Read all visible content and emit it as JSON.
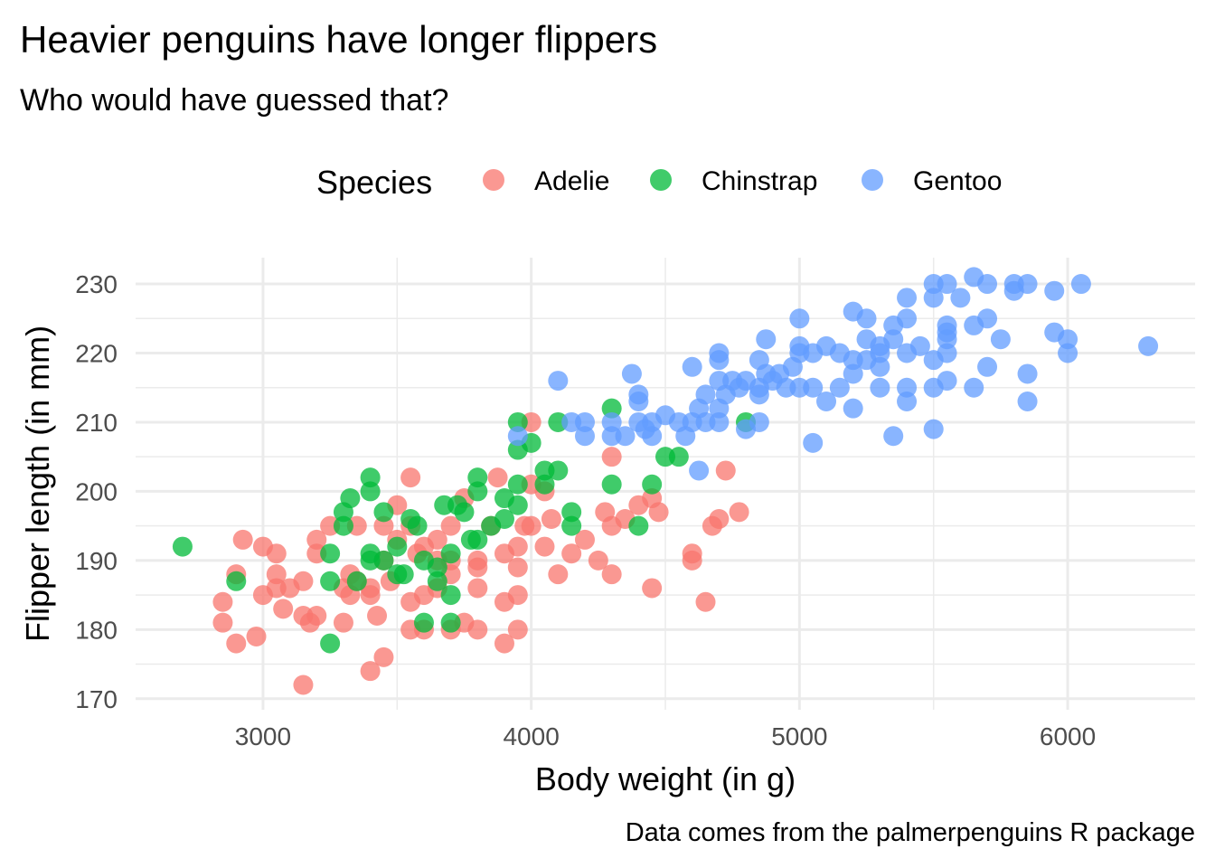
{
  "chart_data": {
    "type": "scatter",
    "title": "Heavier penguins have longer flippers",
    "subtitle": "Who would have guessed that?",
    "caption": "Data comes from the palmerpenguins R package",
    "xlabel": "Body weight (in g)",
    "ylabel": "Flipper length (in mm)",
    "xlim": [
      2525,
      6475
    ],
    "ylim": [
      168.4,
      233.8
    ],
    "xticks": [
      3000,
      4000,
      5000,
      6000
    ],
    "yticks": [
      170,
      180,
      190,
      200,
      210,
      220,
      230
    ],
    "grid": true,
    "legend": {
      "title": "Species",
      "position": "top"
    },
    "series": [
      {
        "name": "Adelie",
        "color": "#F8766D",
        "points": [
          [
            2850,
            184
          ],
          [
            2850,
            181
          ],
          [
            2900,
            178
          ],
          [
            2900,
            188
          ],
          [
            2925,
            193
          ],
          [
            2975,
            179
          ],
          [
            3000,
            192
          ],
          [
            3000,
            185
          ],
          [
            3050,
            191
          ],
          [
            3050,
            188
          ],
          [
            3050,
            186
          ],
          [
            3075,
            183
          ],
          [
            3100,
            186
          ],
          [
            3150,
            182
          ],
          [
            3150,
            187
          ],
          [
            3150,
            172
          ],
          [
            3175,
            181
          ],
          [
            3200,
            191
          ],
          [
            3200,
            193
          ],
          [
            3200,
            182
          ],
          [
            3250,
            195
          ],
          [
            3300,
            181
          ],
          [
            3300,
            186
          ],
          [
            3325,
            185
          ],
          [
            3350,
            195
          ],
          [
            3400,
            174
          ],
          [
            3400,
            186
          ],
          [
            3400,
            185
          ],
          [
            3425,
            182
          ],
          [
            3450,
            176
          ],
          [
            3450,
            190
          ],
          [
            3450,
            195
          ],
          [
            3500,
            198
          ],
          [
            3500,
            193
          ],
          [
            3550,
            202
          ],
          [
            3550,
            180
          ],
          [
            3550,
            184
          ],
          [
            3575,
            191
          ],
          [
            3600,
            180
          ],
          [
            3600,
            185
          ],
          [
            3650,
            190
          ],
          [
            3650,
            186
          ],
          [
            3700,
            180
          ],
          [
            3700,
            188
          ],
          [
            3700,
            195
          ],
          [
            3750,
            181
          ],
          [
            3750,
            199
          ],
          [
            3800,
            180
          ],
          [
            3800,
            186
          ],
          [
            3800,
            189
          ],
          [
            3800,
            190
          ],
          [
            3850,
            195
          ],
          [
            3875,
            202
          ],
          [
            3900,
            184
          ],
          [
            3900,
            178
          ],
          [
            3900,
            191
          ],
          [
            3950,
            180
          ],
          [
            3950,
            185
          ],
          [
            3950,
            189
          ],
          [
            3950,
            192
          ],
          [
            3975,
            195
          ],
          [
            4000,
            210
          ],
          [
            4000,
            201
          ],
          [
            4000,
            195
          ],
          [
            4050,
            192
          ],
          [
            4050,
            200
          ],
          [
            4075,
            196
          ],
          [
            4100,
            188
          ],
          [
            4150,
            191
          ],
          [
            4200,
            193
          ],
          [
            4250,
            190
          ],
          [
            4275,
            197
          ],
          [
            4300,
            205
          ],
          [
            4300,
            188
          ],
          [
            4300,
            195
          ],
          [
            4350,
            196
          ],
          [
            4400,
            198
          ],
          [
            4450,
            186
          ],
          [
            4450,
            199
          ],
          [
            4475,
            197
          ],
          [
            4600,
            190
          ],
          [
            4600,
            191
          ],
          [
            4650,
            184
          ],
          [
            4675,
            195
          ],
          [
            4700,
            196
          ],
          [
            4725,
            203
          ],
          [
            4775,
            197
          ],
          [
            3550,
            195
          ],
          [
            3650,
            193
          ],
          [
            3325,
            188
          ],
          [
            3475,
            187
          ],
          [
            3600,
            192
          ],
          [
            3700,
            190
          ],
          [
            3350,
            187
          ]
        ]
      },
      {
        "name": "Chinstrap",
        "color": "#00BA38",
        "points": [
          [
            2700,
            192
          ],
          [
            2900,
            187
          ],
          [
            3250,
            178
          ],
          [
            3250,
            191
          ],
          [
            3250,
            187
          ],
          [
            3300,
            195
          ],
          [
            3300,
            197
          ],
          [
            3325,
            199
          ],
          [
            3350,
            187
          ],
          [
            3400,
            202
          ],
          [
            3400,
            200
          ],
          [
            3400,
            191
          ],
          [
            3400,
            190
          ],
          [
            3450,
            197
          ],
          [
            3450,
            190
          ],
          [
            3500,
            192
          ],
          [
            3525,
            188
          ],
          [
            3550,
            196
          ],
          [
            3575,
            195
          ],
          [
            3600,
            181
          ],
          [
            3650,
            189
          ],
          [
            3650,
            187
          ],
          [
            3675,
            198
          ],
          [
            3700,
            181
          ],
          [
            3700,
            185
          ],
          [
            3700,
            191
          ],
          [
            3725,
            198
          ],
          [
            3750,
            197
          ],
          [
            3775,
            193
          ],
          [
            3800,
            202
          ],
          [
            3800,
            200
          ],
          [
            3800,
            193
          ],
          [
            3850,
            195
          ],
          [
            3900,
            199
          ],
          [
            3900,
            196
          ],
          [
            3950,
            210
          ],
          [
            3950,
            206
          ],
          [
            3950,
            201
          ],
          [
            3950,
            198
          ],
          [
            4000,
            207
          ],
          [
            4050,
            203
          ],
          [
            4050,
            201
          ],
          [
            4100,
            210
          ],
          [
            4100,
            203
          ],
          [
            4150,
            197
          ],
          [
            4150,
            195
          ],
          [
            4300,
            212
          ],
          [
            4300,
            201
          ],
          [
            4400,
            195
          ],
          [
            4450,
            201
          ],
          [
            4500,
            205
          ],
          [
            4550,
            205
          ],
          [
            4800,
            210
          ],
          [
            3600,
            190
          ],
          [
            3500,
            188
          ]
        ]
      },
      {
        "name": "Gentoo",
        "color": "#619CFF",
        "points": [
          [
            3950,
            208
          ],
          [
            4100,
            216
          ],
          [
            4150,
            210
          ],
          [
            4200,
            210
          ],
          [
            4200,
            208
          ],
          [
            4300,
            210
          ],
          [
            4300,
            208
          ],
          [
            4350,
            208
          ],
          [
            4375,
            217
          ],
          [
            4400,
            214
          ],
          [
            4400,
            213
          ],
          [
            4400,
            210
          ],
          [
            4425,
            209
          ],
          [
            4450,
            210
          ],
          [
            4450,
            208
          ],
          [
            4500,
            211
          ],
          [
            4550,
            210
          ],
          [
            4575,
            208
          ],
          [
            4600,
            218
          ],
          [
            4600,
            210
          ],
          [
            4625,
            212
          ],
          [
            4625,
            203
          ],
          [
            4650,
            214
          ],
          [
            4650,
            210
          ],
          [
            4700,
            220
          ],
          [
            4700,
            219
          ],
          [
            4700,
            216
          ],
          [
            4700,
            212
          ],
          [
            4700,
            210
          ],
          [
            4725,
            214
          ],
          [
            4750,
            216
          ],
          [
            4775,
            215
          ],
          [
            4800,
            216
          ],
          [
            4800,
            209
          ],
          [
            4850,
            219
          ],
          [
            4850,
            215
          ],
          [
            4850,
            214
          ],
          [
            4850,
            210
          ],
          [
            4875,
            222
          ],
          [
            4875,
            217
          ],
          [
            4900,
            216
          ],
          [
            4925,
            217
          ],
          [
            4950,
            215
          ],
          [
            4975,
            218
          ],
          [
            5000,
            225
          ],
          [
            5000,
            221
          ],
          [
            5000,
            220
          ],
          [
            5000,
            215
          ],
          [
            5050,
            220
          ],
          [
            5050,
            207
          ],
          [
            5050,
            215
          ],
          [
            5100,
            221
          ],
          [
            5100,
            213
          ],
          [
            5150,
            220
          ],
          [
            5150,
            215
          ],
          [
            5200,
            226
          ],
          [
            5200,
            219
          ],
          [
            5200,
            217
          ],
          [
            5200,
            212
          ],
          [
            5250,
            225
          ],
          [
            5250,
            222
          ],
          [
            5250,
            219
          ],
          [
            5300,
            221
          ],
          [
            5300,
            220
          ],
          [
            5300,
            218
          ],
          [
            5300,
            215
          ],
          [
            5350,
            224
          ],
          [
            5350,
            222
          ],
          [
            5350,
            208
          ],
          [
            5400,
            228
          ],
          [
            5400,
            225
          ],
          [
            5400,
            220
          ],
          [
            5400,
            215
          ],
          [
            5400,
            213
          ],
          [
            5450,
            221
          ],
          [
            5500,
            230
          ],
          [
            5500,
            228
          ],
          [
            5500,
            219
          ],
          [
            5500,
            215
          ],
          [
            5500,
            209
          ],
          [
            5550,
            230
          ],
          [
            5550,
            224
          ],
          [
            5550,
            223
          ],
          [
            5550,
            222
          ],
          [
            5550,
            220
          ],
          [
            5550,
            216
          ],
          [
            5600,
            228
          ],
          [
            5650,
            231
          ],
          [
            5650,
            224
          ],
          [
            5650,
            215
          ],
          [
            5700,
            230
          ],
          [
            5700,
            225
          ],
          [
            5700,
            218
          ],
          [
            5750,
            222
          ],
          [
            5800,
            230
          ],
          [
            5800,
            229
          ],
          [
            5850,
            230
          ],
          [
            5850,
            217
          ],
          [
            5850,
            213
          ],
          [
            5950,
            229
          ],
          [
            5950,
            223
          ],
          [
            6000,
            222
          ],
          [
            6000,
            220
          ],
          [
            6050,
            230
          ],
          [
            6300,
            221
          ]
        ]
      }
    ]
  }
}
